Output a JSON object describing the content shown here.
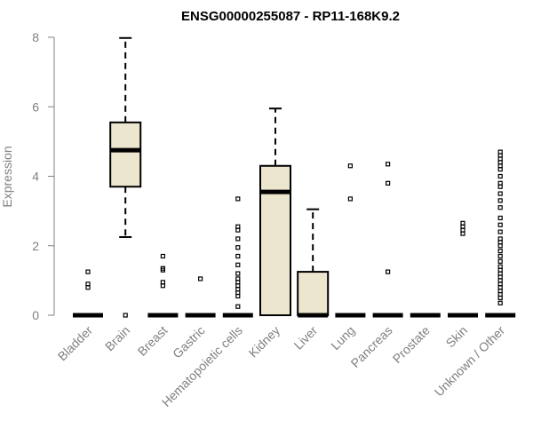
{
  "chart_data": {
    "type": "boxplot",
    "title": "ENSG00000255087 - RP11-168K9.2",
    "xlabel": "",
    "ylabel": "Expression",
    "ylim": [
      0,
      8
    ],
    "yticks": [
      0,
      2,
      4,
      6,
      8
    ],
    "grid": false,
    "legend": "none",
    "box_fill": "#ede6cf",
    "stroke_color": "#000000",
    "axis_color": "#808080",
    "categories": [
      "Bladder",
      "Brain",
      "Breast",
      "Gastric",
      "Hematopoietic cells",
      "Kidney",
      "Liver",
      "Lung",
      "Pancreas",
      "Prostate",
      "Skin",
      "Unknown / Other"
    ],
    "boxes": [
      {
        "q1": 0,
        "median": 0,
        "q3": 0,
        "whisker_low": 0,
        "whisker_high": 0,
        "outliers": [
          0.8,
          0.9,
          1.25
        ]
      },
      {
        "q1": 3.7,
        "median": 4.75,
        "q3": 5.55,
        "whisker_low": 2.25,
        "whisker_high": 7.98,
        "outliers": [
          0
        ]
      },
      {
        "q1": 0,
        "median": 0,
        "q3": 0,
        "whisker_low": 0,
        "whisker_high": 0,
        "outliers": [
          0.85,
          0.95,
          1.3,
          1.35,
          1.7
        ]
      },
      {
        "q1": 0,
        "median": 0,
        "q3": 0,
        "whisker_low": 0,
        "whisker_high": 0,
        "outliers": [
          1.05
        ]
      },
      {
        "q1": 0,
        "median": 0,
        "q3": 0,
        "whisker_low": 0,
        "whisker_high": 0,
        "outliers": [
          0.25,
          0.55,
          0.65,
          0.75,
          0.85,
          0.95,
          1.05,
          1.2,
          1.45,
          1.7,
          1.95,
          2.2,
          2.45,
          2.55,
          3.35
        ]
      },
      {
        "q1": 0,
        "median": 3.55,
        "q3": 4.3,
        "whisker_low": 0,
        "whisker_high": 5.95,
        "outliers": []
      },
      {
        "q1": 0,
        "median": 0,
        "q3": 1.25,
        "whisker_low": 0,
        "whisker_high": 3.05,
        "outliers": []
      },
      {
        "q1": 0,
        "median": 0,
        "q3": 0,
        "whisker_low": 0,
        "whisker_high": 0,
        "outliers": [
          3.35,
          4.3
        ]
      },
      {
        "q1": 0,
        "median": 0,
        "q3": 0,
        "whisker_low": 0,
        "whisker_high": 0,
        "outliers": [
          1.25,
          3.8,
          4.35
        ]
      },
      {
        "q1": 0,
        "median": 0,
        "q3": 0,
        "whisker_low": 0,
        "whisker_high": 0,
        "outliers": []
      },
      {
        "q1": 0,
        "median": 0,
        "q3": 0,
        "whisker_low": 0,
        "whisker_high": 0,
        "outliers": [
          2.35,
          2.45,
          2.55,
          2.65
        ]
      },
      {
        "q1": 0,
        "median": 0,
        "q3": 0,
        "whisker_low": 0,
        "whisker_high": 0,
        "outliers": [
          0.35,
          0.5,
          0.6,
          0.7,
          0.8,
          0.9,
          1.0,
          1.1,
          1.2,
          1.3,
          1.4,
          1.55,
          1.7,
          1.85,
          2.0,
          2.1,
          2.2,
          2.4,
          2.6,
          2.8,
          3.1,
          3.3,
          3.5,
          3.7,
          3.8,
          4.0,
          4.2,
          4.3,
          4.4,
          4.5,
          4.6,
          4.7
        ]
      }
    ]
  }
}
